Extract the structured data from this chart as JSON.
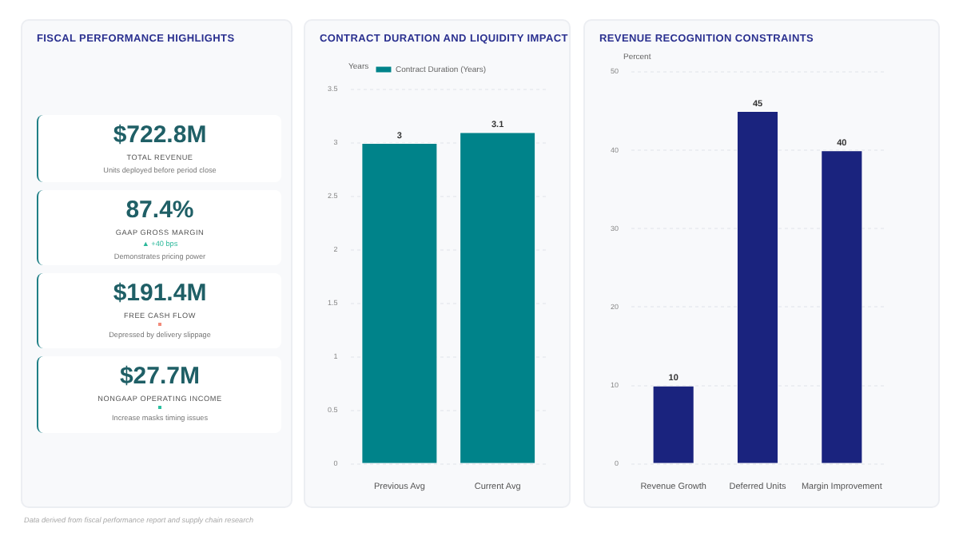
{
  "chart_data": [
    {
      "type": "other",
      "title": "FISCAL PERFORMANCE HIGHLIGHTS",
      "annotations": [
        "$722.8M",
        "TOTAL REVENUE",
        "Units deployed before period close",
        "87.4%",
        "GAAP GROSS MARGIN",
        "▲ +40 bps",
        "Demonstrates pricing power",
        "$191.4M",
        "FREE CASH FLOW",
        "Depressed by delivery slippage",
        "$27.7M",
        "NONGAAP OPERATING INCOME",
        "Increase masks timing issues",
        "Data derived from fiscal performance report and supply chain research"
      ]
    },
    {
      "type": "bar",
      "title": "CONTRACT DURATION AND LIQUIDITY IMPACT",
      "ylabel": "Years",
      "categories": [
        "Previous Avg",
        "Current Avg"
      ],
      "series": [
        {
          "name": "Contract Duration (Years)",
          "color": "#00838a",
          "values": [
            3,
            3.1
          ]
        }
      ],
      "ylim": [
        0,
        3.5
      ],
      "yticks": [
        0,
        0.5,
        1,
        1.5,
        2,
        2.5,
        3,
        3.5
      ],
      "grid": "y",
      "legend": "top",
      "data_labels": true
    },
    {
      "type": "bar",
      "title": "REVENUE RECOGNITION CONSTRAINTS",
      "ylabel": "Percent",
      "categories": [
        "Revenue Growth",
        "Deferred Units",
        "Margin Improvement"
      ],
      "series": [
        {
          "color": "#1a237e",
          "values": [
            10,
            45,
            40
          ]
        }
      ],
      "ylim": [
        0,
        50
      ],
      "yticks": [
        0,
        10,
        20,
        30,
        40,
        50
      ],
      "grid": "y",
      "data_labels": true
    }
  ]
}
